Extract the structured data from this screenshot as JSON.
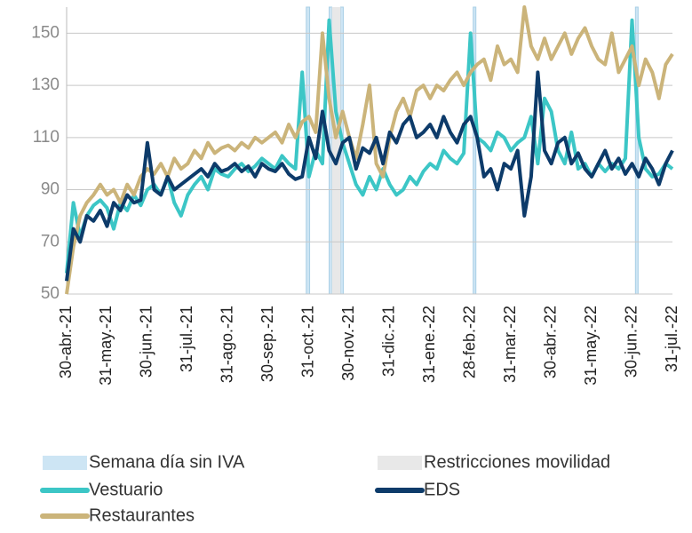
{
  "chart_data": {
    "type": "line",
    "categories": [
      "30-abr.-21",
      null,
      null,
      null,
      null,
      null,
      "31-may.-21",
      null,
      null,
      null,
      null,
      null,
      "30-jun.-21",
      null,
      null,
      null,
      null,
      null,
      "31-jul.-21",
      null,
      null,
      null,
      null,
      null,
      "31-ago.-21",
      null,
      null,
      null,
      null,
      null,
      "30-sep.-21",
      null,
      null,
      null,
      null,
      null,
      "31-oct.-21",
      null,
      null,
      null,
      null,
      null,
      "30-nov.-21",
      null,
      null,
      null,
      null,
      null,
      "31-dic.-21",
      null,
      null,
      null,
      null,
      null,
      "31-ene.-22",
      null,
      null,
      null,
      null,
      null,
      "28-feb.-22",
      null,
      null,
      null,
      null,
      null,
      "31-mar.-22",
      null,
      null,
      null,
      null,
      null,
      "30-abr.-22",
      null,
      null,
      null,
      null,
      null,
      "31-may.-22",
      null,
      null,
      null,
      null,
      null,
      "30-jun.-22",
      null,
      null,
      null,
      null,
      null,
      "31-jul.-22"
    ],
    "series": [
      {
        "name": "Vestuario",
        "color": "#3cc6c6",
        "values": [
          58,
          85,
          72,
          80,
          84,
          86,
          83,
          75,
          85,
          82,
          88,
          84,
          90,
          92,
          88,
          95,
          85,
          80,
          88,
          92,
          95,
          90,
          98,
          96,
          95,
          98,
          100,
          97,
          99,
          102,
          100,
          98,
          103,
          100,
          98,
          135,
          95,
          105,
          100,
          155,
          120,
          108,
          100,
          92,
          88,
          95,
          90,
          98,
          92,
          88,
          90,
          95,
          92,
          97,
          100,
          98,
          105,
          102,
          100,
          104,
          150,
          110,
          108,
          105,
          112,
          110,
          105,
          108,
          110,
          118,
          100,
          125,
          120,
          105,
          100,
          112,
          98,
          100,
          95,
          100,
          97,
          100,
          98,
          102,
          155,
          110,
          98,
          95,
          96,
          100,
          98
        ]
      },
      {
        "name": "Restaurantes",
        "color": "#cbb47a",
        "values": [
          50,
          68,
          80,
          85,
          88,
          92,
          88,
          90,
          85,
          92,
          88,
          95,
          98,
          96,
          100,
          95,
          102,
          98,
          100,
          105,
          102,
          108,
          104,
          106,
          107,
          105,
          108,
          106,
          110,
          108,
          110,
          112,
          108,
          115,
          110,
          116,
          118,
          112,
          150,
          125,
          110,
          120,
          110,
          102,
          115,
          130,
          100,
          95,
          110,
          120,
          125,
          118,
          128,
          130,
          125,
          130,
          128,
          132,
          135,
          130,
          135,
          138,
          140,
          132,
          145,
          138,
          140,
          135,
          160,
          145,
          140,
          148,
          140,
          145,
          150,
          142,
          148,
          152,
          145,
          140,
          138,
          150,
          135,
          140,
          145,
          130,
          140,
          135,
          125,
          138,
          142
        ]
      },
      {
        "name": "EDS",
        "color": "#0d3b6a",
        "values": [
          55,
          75,
          70,
          80,
          78,
          82,
          76,
          85,
          82,
          88,
          85,
          86,
          108,
          90,
          88,
          95,
          90,
          92,
          94,
          96,
          98,
          95,
          100,
          97,
          98,
          100,
          97,
          99,
          95,
          100,
          98,
          97,
          100,
          96,
          94,
          95,
          110,
          102,
          120,
          105,
          100,
          108,
          110,
          98,
          106,
          104,
          110,
          100,
          112,
          108,
          115,
          118,
          110,
          112,
          115,
          110,
          118,
          112,
          108,
          115,
          118,
          110,
          95,
          98,
          90,
          100,
          98,
          105,
          80,
          95,
          135,
          105,
          100,
          108,
          110,
          100,
          104,
          98,
          95,
          100,
          105,
          98,
          102,
          96,
          100,
          95,
          102,
          98,
          92,
          100,
          105
        ]
      }
    ],
    "bands": [
      {
        "name": "Semana día sin IVA",
        "color": "#cde5f4",
        "ranges": [
          [
            35.6,
            36.1
          ],
          [
            39,
            39.4
          ],
          [
            40.7,
            41.1
          ],
          [
            60.4,
            60.8
          ],
          [
            84.5,
            84.9
          ]
        ]
      },
      {
        "name": "Restricciones movilidad",
        "color": "#e8e8e8",
        "ranges": [
          [
            39.4,
            40.7
          ]
        ]
      }
    ],
    "ylim": [
      50,
      160
    ],
    "yticks": [
      50,
      70,
      90,
      110,
      130,
      150
    ],
    "grid": true
  }
}
